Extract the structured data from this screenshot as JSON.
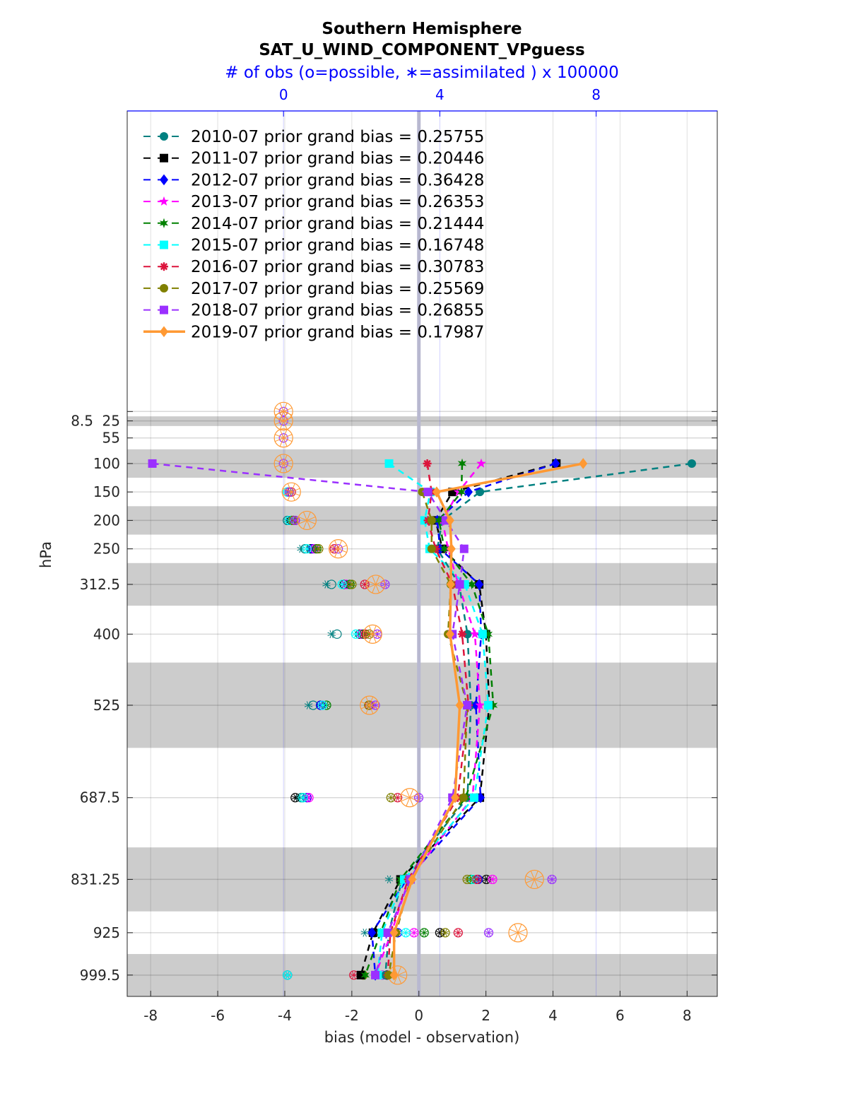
{
  "chart_data": {
    "type": "line",
    "title": "Southern Hemisphere",
    "subtitle": "SAT_U_WIND_COMPONENT_VPguess",
    "top_axis_label": "# of obs (o=possible, ∗=assimilated ) x 100000",
    "top_axis_ticks": [
      0,
      4,
      8
    ],
    "top_axis_range": [
      -4,
      11.1
    ],
    "xlabel": "bias (model - observation)",
    "ylabel": "hPa",
    "xlim": [
      -8.7,
      8.9
    ],
    "ylim": [
      -520,
      1037
    ],
    "x_ticks": [
      -8,
      -6,
      -4,
      -2,
      0,
      2,
      4,
      6,
      8
    ],
    "y_ticks": [
      8.5,
      25,
      55,
      100,
      150,
      200,
      250,
      312.5,
      400,
      525,
      687.5,
      831.25,
      925,
      999.5
    ],
    "y_tick_labels": [
      "8.5",
      "25",
      "55",
      "100",
      "150",
      "200",
      "250",
      "312.5",
      "400",
      "525",
      "687.5",
      "831.25",
      "925",
      "999.5"
    ],
    "x_tick_labels": [
      "-8",
      "-6",
      "-4",
      "-2",
      "0",
      "2",
      "4",
      "6",
      "8"
    ],
    "top_tick_labels": [
      "0",
      "4",
      "8"
    ],
    "level_bands_hPa": [
      [
        17,
        34
      ],
      [
        75,
        125
      ],
      [
        175,
        225
      ],
      [
        275,
        350
      ],
      [
        450,
        600
      ],
      [
        775,
        887.5
      ],
      [
        962.5,
        1037
      ]
    ],
    "grid": true,
    "legend_position": "top-left",
    "legend_text": "prior grand bias =",
    "levels": [
      8.5,
      25,
      55,
      100,
      150,
      200,
      250,
      312.5,
      400,
      525,
      687.5,
      831.25,
      925,
      999.5
    ],
    "series": [
      {
        "name": "2010-07",
        "grand_bias": "0.25755",
        "color": "#008080",
        "marker": "circle",
        "style": "dashed",
        "bias": [
          null,
          null,
          null,
          8.14,
          1.82,
          0.7,
          0.55,
          1.2,
          1.45,
          1.55,
          1.45,
          -0.5,
          -0.9,
          -1.0
        ],
        "obs_possible": [
          null,
          null,
          null,
          null,
          0.1,
          0.1,
          0.55,
          1.23,
          1.37,
          0.76,
          0.45,
          3.04,
          2.33,
          0.1
        ],
        "obs_assimilated": [
          null,
          null,
          null,
          null,
          0.1,
          0.1,
          0.45,
          1.1,
          1.23,
          0.64,
          0.4,
          2.7,
          2.08,
          0.1
        ]
      },
      {
        "name": "2011-07",
        "grand_bias": "0.20446",
        "color": "#000000",
        "marker": "square",
        "style": "dashed",
        "bias": [
          null,
          null,
          null,
          4.1,
          1.0,
          0.5,
          0.7,
          1.8,
          2.0,
          2.1,
          1.82,
          -0.55,
          -1.37,
          -1.73
        ],
        "obs_possible": [
          null,
          null,
          null,
          null,
          0.15,
          0.2,
          0.7,
          1.55,
          1.95,
          0.95,
          0.3,
          5.19,
          4.0,
          2.65
        ],
        "obs_assimilated": [
          null,
          null,
          null,
          null,
          0.15,
          0.2,
          0.7,
          1.55,
          1.95,
          0.95,
          0.3,
          5.19,
          4.0,
          2.65
        ]
      },
      {
        "name": "2012-07",
        "grand_bias": "0.36428",
        "color": "#0000ff",
        "marker": "diamond",
        "style": "dashed",
        "bias": [
          null,
          null,
          null,
          4.08,
          1.48,
          0.55,
          0.63,
          1.8,
          1.86,
          1.7,
          1.84,
          -0.36,
          -1.4,
          -1.3
        ],
        "obs_possible": [
          null,
          null,
          null,
          null,
          0.15,
          0.25,
          0.75,
          1.6,
          2.0,
          0.95,
          0.6,
          4.98,
          2.92,
          0.1
        ],
        "obs_assimilated": [
          null,
          null,
          null,
          null,
          0.15,
          0.25,
          0.75,
          1.6,
          2.0,
          0.95,
          0.6,
          4.98,
          2.92,
          0.1
        ]
      },
      {
        "name": "2013-07",
        "grand_bias": "0.26353",
        "color": "#ff00ff",
        "marker": "star",
        "style": "dashed",
        "bias": [
          null,
          null,
          null,
          1.86,
          1.18,
          0.7,
          0.87,
          1.18,
          1.67,
          1.82,
          1.6,
          -0.3,
          -0.82,
          -1.3
        ],
        "obs_possible": [
          null,
          null,
          null,
          null,
          0.15,
          0.25,
          0.8,
          1.6,
          2.0,
          1.0,
          0.65,
          5.35,
          3.34,
          0.1
        ],
        "obs_assimilated": [
          null,
          null,
          null,
          null,
          0.15,
          0.25,
          0.8,
          1.6,
          2.0,
          1.0,
          0.65,
          5.35,
          3.34,
          0.1
        ]
      },
      {
        "name": "2014-07",
        "grand_bias": "0.21444",
        "color": "#008000",
        "marker": "hexagram",
        "style": "dashed",
        "bias": [
          null,
          null,
          null,
          1.29,
          1.27,
          0.6,
          0.76,
          1.58,
          2.07,
          2.22,
          1.4,
          -0.55,
          -1.14,
          -1.6
        ],
        "obs_possible": [
          null,
          null,
          null,
          null,
          0.15,
          0.25,
          0.85,
          1.7,
          2.05,
          1.1,
          0.5,
          4.8,
          3.6,
          0.1
        ],
        "obs_assimilated": [
          null,
          null,
          null,
          null,
          0.15,
          0.25,
          0.85,
          1.7,
          2.05,
          1.1,
          0.5,
          4.8,
          3.6,
          0.1
        ]
      },
      {
        "name": "2015-07",
        "grand_bias": "0.16748",
        "color": "#00ffff",
        "marker": "square",
        "style": "dashed",
        "bias": [
          null,
          null,
          null,
          -0.89,
          0.34,
          0.17,
          0.32,
          1.37,
          1.9,
          2.07,
          1.65,
          -0.44,
          -1.1,
          -1.23
        ],
        "obs_possible": [
          null,
          null,
          null,
          null,
          0.1,
          0.15,
          0.6,
          1.5,
          1.85,
          1.0,
          0.5,
          4.85,
          3.13,
          0.1
        ],
        "obs_assimilated": [
          null,
          null,
          null,
          null,
          0.1,
          0.15,
          0.6,
          1.5,
          1.85,
          1.0,
          0.5,
          4.85,
          3.13,
          0.1
        ]
      },
      {
        "name": "2016-07",
        "grand_bias": "0.30783",
        "color": "#dc143c",
        "marker": "asterisk",
        "style": "dashed",
        "bias": [
          null,
          null,
          null,
          0.25,
          0.38,
          0.27,
          0.5,
          1.0,
          1.29,
          1.48,
          1.16,
          -0.32,
          -0.85,
          -0.93
        ],
        "obs_possible": [
          null,
          null,
          null,
          null,
          0.2,
          0.3,
          1.3,
          2.08,
          2.1,
          2.2,
          2.92,
          4.95,
          4.47,
          1.8
        ],
        "obs_assimilated": [
          null,
          null,
          null,
          null,
          0.2,
          0.3,
          1.3,
          2.08,
          2.1,
          2.2,
          2.92,
          4.95,
          4.47,
          1.8
        ]
      },
      {
        "name": "2017-07",
        "grand_bias": "0.25569",
        "color": "#808000",
        "marker": "circle",
        "style": "dashed",
        "bias": [
          null,
          null,
          null,
          null,
          0.1,
          0.38,
          0.38,
          0.95,
          0.87,
          1.44,
          1.33,
          -0.25,
          -0.68,
          -0.9
        ],
        "obs_possible": [
          null,
          null,
          null,
          null,
          0.15,
          0.25,
          0.9,
          1.75,
          2.2,
          2.18,
          2.75,
          4.7,
          4.14,
          2.04
        ],
        "obs_assimilated": [
          null,
          null,
          null,
          null,
          0.15,
          0.25,
          0.9,
          1.75,
          2.2,
          2.18,
          2.75,
          4.7,
          4.14,
          2.04
        ]
      },
      {
        "name": "2018-07",
        "grand_bias": "0.26855",
        "color": "#9b30ff",
        "marker": "square",
        "style": "dashed",
        "bias": [
          null,
          null,
          null,
          -7.95,
          0.27,
          0.8,
          1.35,
          1.22,
          1.0,
          1.44,
          1.0,
          -0.25,
          -0.93,
          -1.3
        ],
        "obs_possible": [
          0,
          0,
          0,
          0,
          0.15,
          0.3,
          1.4,
          2.6,
          2.4,
          2.35,
          3.46,
          6.87,
          5.25,
          2.53
        ],
        "obs_assimilated": [
          0,
          0,
          0,
          0,
          0.15,
          0.3,
          1.4,
          2.6,
          2.4,
          2.35,
          3.46,
          6.87,
          5.25,
          2.53
        ]
      },
      {
        "name": "2019-07",
        "grand_bias": "0.17987",
        "color": "#ff9933",
        "marker": "diamond",
        "style": "solid",
        "bias": [
          null,
          null,
          null,
          4.9,
          0.53,
          0.93,
          0.97,
          0.95,
          0.93,
          1.22,
          1.08,
          -0.2,
          -0.74,
          -0.74
        ],
        "obs_possible": [
          0,
          0,
          0,
          0,
          0.2,
          0.6,
          1.4,
          2.36,
          2.28,
          2.2,
          3.23,
          6.42,
          6.0,
          2.92
        ],
        "obs_assimilated": [
          0,
          0,
          0,
          0,
          0.2,
          0.6,
          1.4,
          2.36,
          2.28,
          2.2,
          3.23,
          6.42,
          6.0,
          2.92
        ]
      }
    ]
  }
}
